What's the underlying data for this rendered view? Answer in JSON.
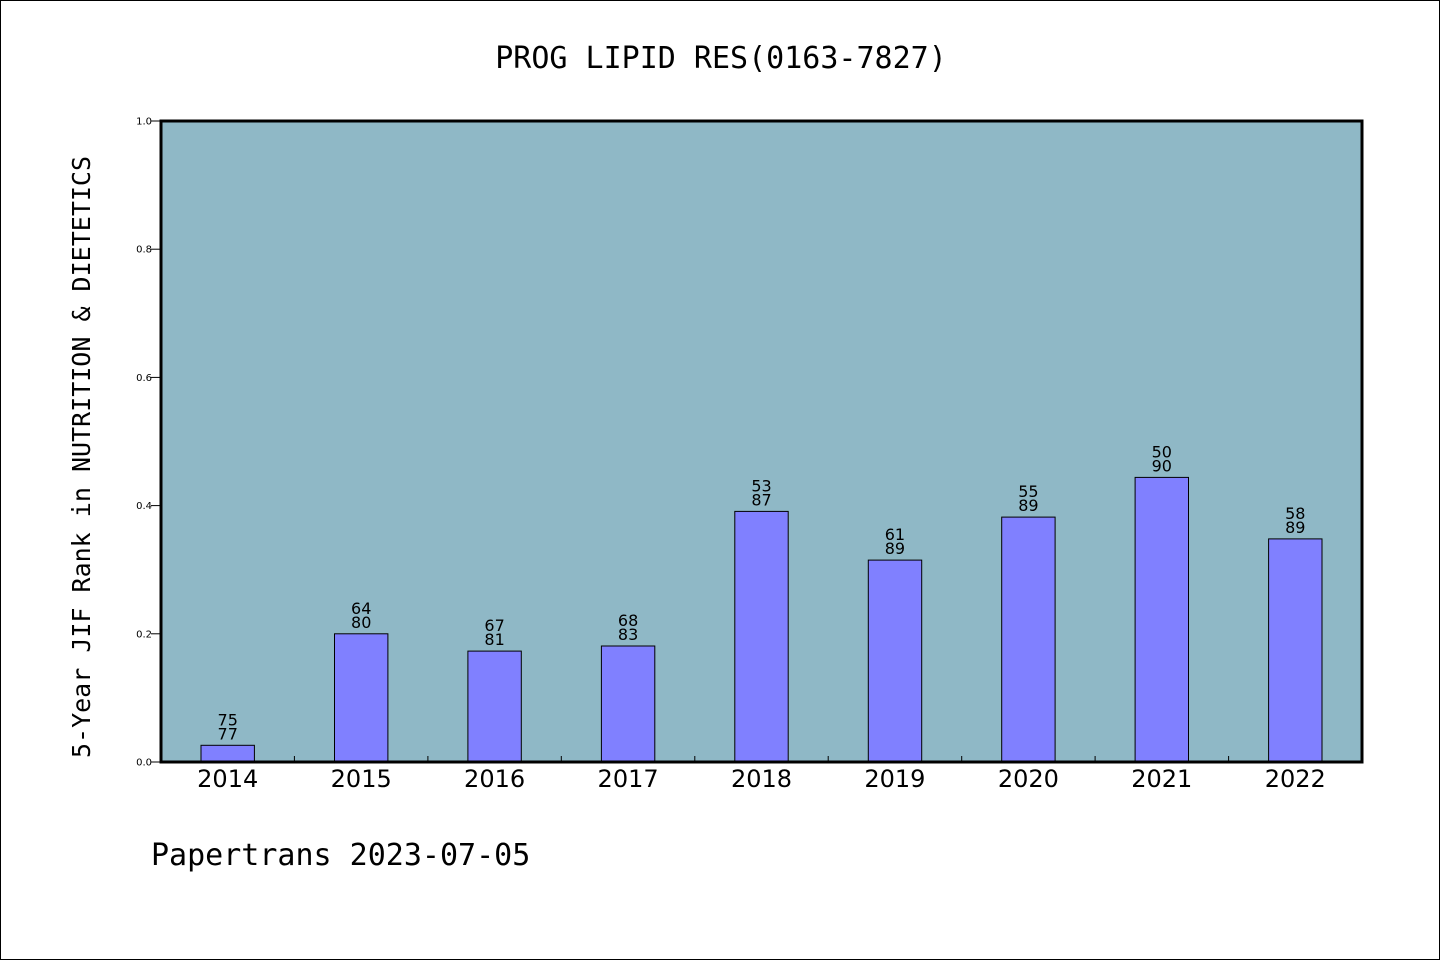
{
  "footer": "Papertrans 2023-07-05",
  "colors": {
    "plot_background": "#8fb8c6",
    "bar_fill": "#8080ff",
    "bar_stroke": "#000000",
    "frame": "#000000"
  },
  "chart_data": {
    "type": "bar",
    "title": "PROG LIPID RES(0163-7827)",
    "xlabel": "",
    "ylabel": "5-Year JIF Rank in NUTRITION & DIETETICS",
    "ylim": [
      0,
      1.0
    ],
    "yticks": [
      "0.0",
      "0.2",
      "0.4",
      "0.6",
      "0.8",
      "1.0"
    ],
    "grid": false,
    "legend": "none",
    "categories": [
      "2014",
      "2015",
      "2016",
      "2017",
      "2018",
      "2019",
      "2020",
      "2021",
      "2022"
    ],
    "values": [
      0.026,
      0.2,
      0.173,
      0.181,
      0.391,
      0.315,
      0.382,
      0.444,
      0.348
    ],
    "bar_labels": [
      [
        "75",
        "77"
      ],
      [
        "64",
        "80"
      ],
      [
        "67",
        "81"
      ],
      [
        "68",
        "83"
      ],
      [
        "53",
        "87"
      ],
      [
        "61",
        "89"
      ],
      [
        "55",
        "89"
      ],
      [
        "50",
        "90"
      ],
      [
        "58",
        "89"
      ]
    ]
  }
}
